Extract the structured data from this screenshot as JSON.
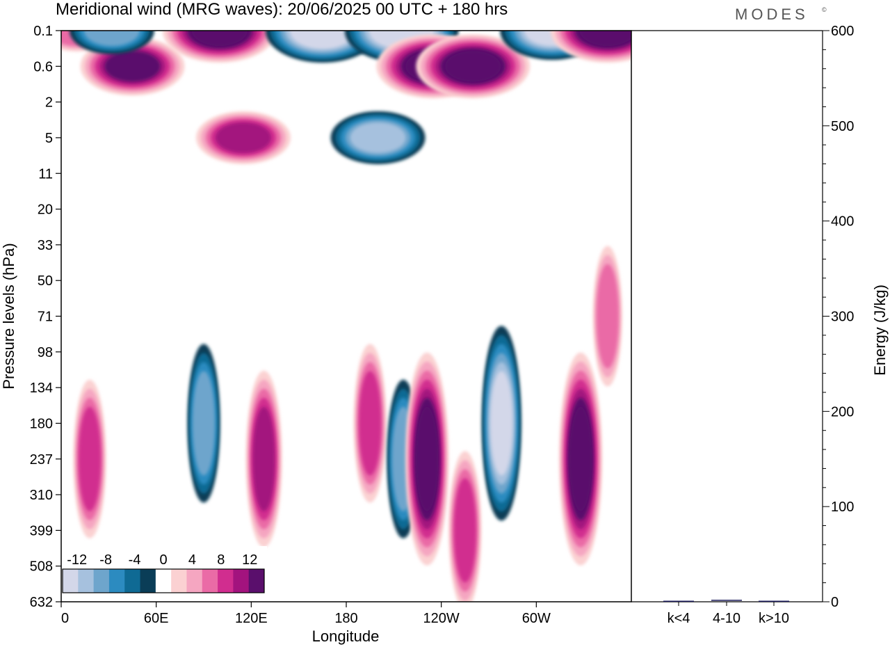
{
  "title": "Meridional wind (MRG waves):  20/06/2025  00 UTC  + 180 hrs",
  "brand": "MODES",
  "brand_mark": "©",
  "colors": {
    "neg": [
      "#0a3d57",
      "#0f6a94",
      "#2c8bc0",
      "#6ea5cc",
      "#a6c1de",
      "#d3d7e9"
    ],
    "pos": [
      "#fbd1d2",
      "#f5a6c1",
      "#ea6ba6",
      "#d12d8f",
      "#a3137e",
      "#5a0f6c"
    ]
  },
  "chart_data": [
    {
      "type": "heatmap",
      "title": "Meridional wind (MRG waves):  20/06/2025  00 UTC  + 180 hrs",
      "xlabel": "Longitude",
      "ylabel": "Pressure levels (hPa)",
      "x_ticks": [
        "0",
        "60E",
        "120E",
        "180",
        "120W",
        "60W"
      ],
      "x_tick_values": [
        0,
        60,
        120,
        180,
        240,
        300
      ],
      "xlim": [
        0,
        360
      ],
      "y_ticks": [
        "0.1",
        "0.6",
        "2",
        "5",
        "11",
        "20",
        "33",
        "50",
        "71",
        "98",
        "134",
        "180",
        "237",
        "310",
        "399",
        "508",
        "632"
      ],
      "colorbar_labels": [
        "-12",
        "-8",
        "-4",
        "0",
        "4",
        "8",
        "12"
      ],
      "colorbar_levels": [
        -14,
        -12,
        -10,
        -8,
        -6,
        -4,
        -2,
        2,
        4,
        6,
        8,
        10,
        12,
        14
      ],
      "contour_interval": 2,
      "features": [
        {
          "lon": 10,
          "level": "0.1",
          "value": 7
        },
        {
          "lon": 45,
          "level": "0.6",
          "value": 12
        },
        {
          "lon": 32,
          "level": "0.1",
          "value": -8
        },
        {
          "lon": 100,
          "level": "0.1",
          "value": 14
        },
        {
          "lon": 165,
          "level": "0.1",
          "value": -14
        },
        {
          "lon": 215,
          "level": "0.1",
          "value": -14
        },
        {
          "lon": 235,
          "level": "0.6",
          "value": 14
        },
        {
          "lon": 260,
          "level": "0.6",
          "value": 14
        },
        {
          "lon": 310,
          "level": "0.1",
          "value": -12
        },
        {
          "lon": 345,
          "level": "0.1",
          "value": 14
        },
        {
          "lon": 200,
          "level": "5",
          "value": -10
        },
        {
          "lon": 115,
          "level": "5",
          "value": 10
        },
        {
          "lon": 18,
          "level": "237",
          "value": 8
        },
        {
          "lon": 90,
          "level": "180",
          "value": -8
        },
        {
          "lon": 128,
          "level": "237",
          "value": 10
        },
        {
          "lon": 195,
          "level": "180",
          "value": 8
        },
        {
          "lon": 216,
          "level": "237",
          "value": -8
        },
        {
          "lon": 231,
          "level": "237",
          "value": 14
        },
        {
          "lon": 255,
          "level": "399",
          "value": 8
        },
        {
          "lon": 278,
          "level": "180",
          "value": -12
        },
        {
          "lon": 328,
          "level": "237",
          "value": 14
        },
        {
          "lon": 345,
          "level": "71",
          "value": 6
        }
      ]
    },
    {
      "type": "bar",
      "ylabel": "Energy (J/kg)",
      "categories": [
        "k<4",
        "4-10",
        "k>10"
      ],
      "values": [
        0,
        1,
        0
      ],
      "ylim": [
        0,
        600
      ],
      "y_ticks": [
        0,
        100,
        200,
        300,
        400,
        500,
        600
      ],
      "color": "#1a1a5a"
    }
  ]
}
